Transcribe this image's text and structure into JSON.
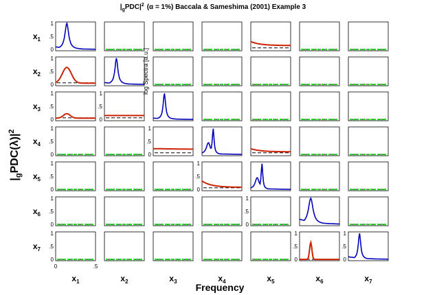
{
  "chart_data": {
    "type": "line",
    "title_parts": {
      "open": "|",
      "sub": "g",
      "pdc": "PDC|",
      "sup": "2",
      "paren": "(α = 1%) Baccala & Sameshima (2001) Example 3"
    },
    "ylabel_parts": {
      "open": "|",
      "sub": "g",
      "mid": "PDC(λ)|",
      "sup": "2"
    },
    "xlabel": "Frequency",
    "spectra_label": "log Spectra [a.u.]",
    "channels": [
      "x1",
      "x2",
      "x3",
      "x4",
      "x5",
      "x6",
      "x7"
    ],
    "channel_parts": [
      {
        "base": "x",
        "sub": "1"
      },
      {
        "base": "x",
        "sub": "2"
      },
      {
        "base": "x",
        "sub": "3"
      },
      {
        "base": "x",
        "sub": "4"
      },
      {
        "base": "x",
        "sub": "5"
      },
      {
        "base": "x",
        "sub": "6"
      },
      {
        "base": "x",
        "sub": "7"
      }
    ],
    "ytick_labels": [
      "0",
      ".5",
      "1"
    ],
    "yticks": [
      0,
      0.5,
      1
    ],
    "xtick_labels": [
      "0",
      ".5"
    ],
    "xticks": [
      0,
      0.5
    ],
    "xlim": [
      0,
      0.5
    ],
    "ylim": [
      -0.05,
      1.05
    ],
    "grid": false,
    "colors": {
      "significant": "#cc2200",
      "nonsignificant": "#22dd22",
      "spectrum": "#0000bb",
      "threshold": "#000000",
      "axes": "#000000"
    },
    "diagonal_spectra": [
      {
        "row": 1,
        "peaks": [
          [
            0.14,
            1.0,
            0.028
          ]
        ],
        "base": 0.1
      },
      {
        "row": 2,
        "peaks": [
          [
            0.15,
            1.0,
            0.022
          ]
        ],
        "base": 0.07
      },
      {
        "row": 3,
        "peaks": [
          [
            0.14,
            1.0,
            0.018
          ]
        ],
        "base": 0.05
      },
      {
        "row": 4,
        "peaks": [
          [
            0.14,
            1.0,
            0.013
          ],
          [
            0.08,
            0.45,
            0.03
          ]
        ],
        "base": 0.06
      },
      {
        "row": 5,
        "peaks": [
          [
            0.14,
            1.0,
            0.012
          ],
          [
            0.08,
            0.45,
            0.03
          ]
        ],
        "base": 0.06
      },
      {
        "row": 6,
        "peaks": [
          [
            0.14,
            1.0,
            0.035
          ]
        ],
        "base": 0.2
      },
      {
        "row": 7,
        "peaks": [
          [
            0.14,
            1.0,
            0.018
          ]
        ],
        "base": 0.1
      }
    ],
    "significant_pdc": [
      {
        "to": 1,
        "from": 5,
        "shape": "decay",
        "start": 0.3,
        "end": 0.15
      },
      {
        "to": 2,
        "from": 1,
        "shape": "peak",
        "center": 0.14,
        "height": 0.6,
        "width": 0.08,
        "base": 0.05
      },
      {
        "to": 3,
        "from": 1,
        "shape": "peak",
        "center": 0.14,
        "height": 0.17,
        "width": 0.06,
        "base": 0.05
      },
      {
        "to": 3,
        "from": 2,
        "shape": "flat",
        "start": 0.15,
        "end": 0.15
      },
      {
        "to": 4,
        "from": 3,
        "shape": "flat",
        "start": 0.22,
        "end": 0.2
      },
      {
        "to": 4,
        "from": 5,
        "shape": "decay",
        "start": 0.22,
        "end": 0.1
      },
      {
        "to": 5,
        "from": 4,
        "shape": "decay",
        "start": 0.32,
        "end": 0.08
      },
      {
        "to": 7,
        "from": 6,
        "shape": "peak",
        "center": 0.14,
        "height": 0.65,
        "width": 0.02,
        "base": 0.0
      }
    ],
    "thresholds": [
      {
        "to": 1,
        "from": 5,
        "value": 0.06
      },
      {
        "to": 2,
        "from": 1,
        "value": 0.06
      },
      {
        "to": 3,
        "from": 1,
        "value": 0.06
      },
      {
        "to": 3,
        "from": 2,
        "value": 0.06
      },
      {
        "to": 4,
        "from": 3,
        "value": 0.06
      },
      {
        "to": 4,
        "from": 5,
        "value": 0.06
      },
      {
        "to": 5,
        "from": 4,
        "value": 0.06
      },
      {
        "to": 7,
        "from": 6,
        "value": 0.0
      }
    ],
    "nonsignificant_level": 0.0
  }
}
